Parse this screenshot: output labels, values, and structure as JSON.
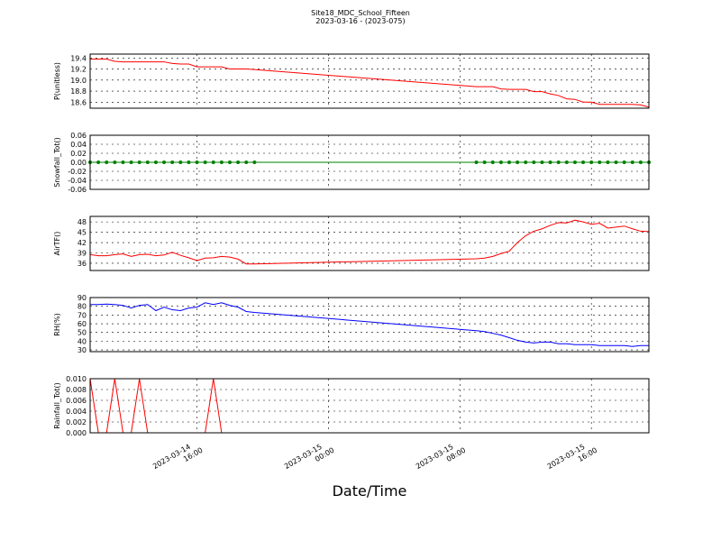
{
  "chart_data": {
    "title": "Site18_MDC_School_Fifteen",
    "subtitle": "2023-03-16 - (2023-075)",
    "xlabel": "Date/Time",
    "grid": true,
    "xlim": [
      "2023-03-14 09:30",
      "2023-03-15 19:30"
    ],
    "xticks": [
      {
        "value": "2023-03-14 16:00",
        "label": "2023-03-14\n16:00"
      },
      {
        "value": "2023-03-15 00:00",
        "label": "2023-03-15\n00:00"
      },
      {
        "value": "2023-03-15 08:00",
        "label": "2023-03-15\n08:00"
      },
      {
        "value": "2023-03-15 16:00",
        "label": "2023-03-15\n16:00"
      }
    ],
    "x": [
      "2023-03-14 09:30",
      "2023-03-14 10:00",
      "2023-03-14 10:30",
      "2023-03-14 11:00",
      "2023-03-14 11:30",
      "2023-03-14 12:00",
      "2023-03-14 12:30",
      "2023-03-14 13:00",
      "2023-03-14 13:30",
      "2023-03-14 14:00",
      "2023-03-14 14:30",
      "2023-03-14 15:00",
      "2023-03-14 15:30",
      "2023-03-14 16:00",
      "2023-03-14 16:30",
      "2023-03-14 17:00",
      "2023-03-14 17:30",
      "2023-03-14 18:00",
      "2023-03-14 18:30",
      "2023-03-14 19:00",
      "2023-03-14 19:30",
      "2023-03-15 09:00",
      "2023-03-15 09:30",
      "2023-03-15 10:00",
      "2023-03-15 10:30",
      "2023-03-15 11:00",
      "2023-03-15 11:30",
      "2023-03-15 12:00",
      "2023-03-15 12:30",
      "2023-03-15 13:00",
      "2023-03-15 13:30",
      "2023-03-15 14:00",
      "2023-03-15 14:30",
      "2023-03-15 15:00",
      "2023-03-15 15:30",
      "2023-03-15 16:00",
      "2023-03-15 16:30",
      "2023-03-15 17:00",
      "2023-03-15 17:30",
      "2023-03-15 18:00",
      "2023-03-15 18:30",
      "2023-03-15 19:00",
      "2023-03-15 19:30"
    ],
    "panels": [
      {
        "type": "line",
        "ylabel": "P(unitless)",
        "color": "#ff0000",
        "marker": false,
        "ylim": [
          18.49,
          19.47
        ],
        "yticks": [
          18.6,
          18.8,
          {
            "value": 19.0,
            "label": "19.0"
          },
          19.2,
          19.4
        ],
        "values": [
          19.38,
          19.38,
          19.38,
          19.34,
          19.33,
          19.33,
          19.33,
          19.33,
          19.33,
          19.33,
          19.3,
          19.29,
          19.29,
          19.24,
          19.24,
          19.24,
          19.24,
          19.2,
          19.2,
          19.2,
          19.19,
          18.88,
          18.88,
          18.88,
          18.84,
          18.83,
          18.83,
          18.83,
          18.79,
          18.79,
          18.75,
          18.72,
          18.66,
          18.65,
          18.6,
          18.6,
          18.56,
          18.56,
          18.56,
          18.56,
          18.56,
          18.55,
          18.51
        ]
      },
      {
        "type": "line",
        "ylabel": "Snowfall_Tot()",
        "color": "#008000",
        "marker": true,
        "ylim": [
          -0.06,
          0.06
        ],
        "yticks": [
          -0.06,
          -0.04,
          -0.02,
          {
            "value": 0,
            "label": "0.00"
          },
          0.02,
          0.04,
          0.06
        ],
        "values": [
          0,
          0,
          0,
          0,
          0,
          0,
          0,
          0,
          0,
          0,
          0,
          0,
          0,
          0,
          0,
          0,
          0,
          0,
          0,
          0,
          0,
          0,
          0,
          0,
          0,
          0,
          0,
          0,
          0,
          0,
          0,
          0,
          0,
          0,
          0,
          0,
          0,
          0,
          0,
          0,
          0,
          0,
          0
        ]
      },
      {
        "type": "line",
        "ylabel": "AirTF()",
        "color": "#ff0000",
        "marker": false,
        "ylim": [
          33.9,
          49.6
        ],
        "yticks": [
          36,
          39,
          42,
          45,
          48
        ],
        "values": [
          38.5,
          38.2,
          38.2,
          38.5,
          38.7,
          38.0,
          38.5,
          38.6,
          38.2,
          38.4,
          39.2,
          38.3,
          37.6,
          36.8,
          37.5,
          37.6,
          38.0,
          37.8,
          37.2,
          35.8,
          35.8,
          37.3,
          37.5,
          38.0,
          38.8,
          39.5,
          42.0,
          44.0,
          45.3,
          46.0,
          47.0,
          47.8,
          47.7,
          48.5,
          48.0,
          47.3,
          47.6,
          46.2,
          46.5,
          46.8,
          46.0,
          45.3,
          45.2
        ]
      },
      {
        "type": "line",
        "ylabel": "RH(%)",
        "color": "#0000ff",
        "marker": false,
        "ylim": [
          28,
          90
        ],
        "yticks": [
          30,
          40,
          50,
          60,
          70,
          80,
          90
        ],
        "values": [
          82,
          82,
          82.5,
          82,
          81,
          78,
          81,
          82,
          75,
          79,
          76,
          75,
          78,
          79,
          84,
          82,
          84,
          81,
          79,
          74,
          73,
          52,
          51,
          49,
          47,
          44,
          41,
          39,
          38,
          39,
          39,
          37,
          37,
          36,
          36,
          36,
          35,
          35,
          35,
          35,
          34,
          35,
          35
        ]
      },
      {
        "type": "line",
        "ylabel": "Rainfall_Tot()",
        "color": "#ff0000",
        "marker": false,
        "ylim": [
          0,
          0.01
        ],
        "yticks": [
          {
            "value": 0,
            "label": "0.000"
          },
          {
            "value": 0.002,
            "label": "0.002"
          },
          {
            "value": 0.004,
            "label": "0.004"
          },
          {
            "value": 0.006,
            "label": "0.006"
          },
          {
            "value": 0.008,
            "label": "0.008"
          },
          {
            "value": 0.01,
            "label": "0.010"
          }
        ],
        "values": [
          0.01,
          0,
          0,
          0.01,
          0,
          0,
          0.01,
          0,
          0,
          0,
          0,
          0,
          0,
          0,
          0,
          0.01,
          0,
          0,
          0,
          0,
          0,
          0,
          0,
          0,
          0,
          0,
          0,
          0,
          0,
          0,
          0,
          0,
          0,
          0,
          0,
          0,
          0,
          0,
          0,
          0,
          0,
          0,
          0
        ]
      }
    ]
  }
}
